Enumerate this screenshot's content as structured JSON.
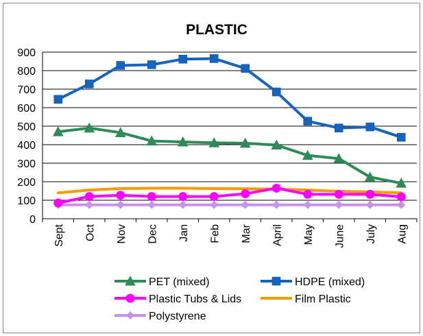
{
  "chart_data": {
    "type": "line",
    "title": "PLASTIC",
    "categories": [
      "Sept",
      "Oct",
      "Nov",
      "Dec",
      "Jan",
      "Feb",
      "Mar",
      "April",
      "May",
      "June",
      "July",
      "Aug"
    ],
    "ylim": [
      0,
      900
    ],
    "yticks": [
      0,
      100,
      200,
      300,
      400,
      500,
      600,
      700,
      800,
      900
    ],
    "grid": true,
    "legend_position": "bottom",
    "series": [
      {
        "name": "PET (mixed)",
        "color": "#2e8b57",
        "marker": "triangle",
        "values": [
          470,
          490,
          465,
          420,
          415,
          410,
          408,
          398,
          342,
          325,
          225,
          192
        ]
      },
      {
        "name": "HDPE (mixed)",
        "color": "#1565c0",
        "marker": "square",
        "values": [
          645,
          728,
          828,
          832,
          862,
          865,
          812,
          685,
          527,
          490,
          496,
          440
        ]
      },
      {
        "name": "Plastic Tubs & Lids",
        "color": "#ff00ff",
        "marker": "circle",
        "values": [
          85,
          120,
          127,
          120,
          120,
          120,
          135,
          165,
          132,
          132,
          132,
          118
        ]
      },
      {
        "name": "Film Plastic",
        "color": "#ff9900",
        "marker": "none",
        "values": [
          140,
          155,
          163,
          165,
          165,
          163,
          162,
          160,
          155,
          148,
          145,
          140
        ]
      },
      {
        "name": "Polystyrene",
        "color": "#c792ea",
        "marker": "diamond",
        "values": [
          75,
          75,
          75,
          75,
          75,
          75,
          75,
          75,
          75,
          75,
          75,
          75
        ]
      }
    ]
  }
}
